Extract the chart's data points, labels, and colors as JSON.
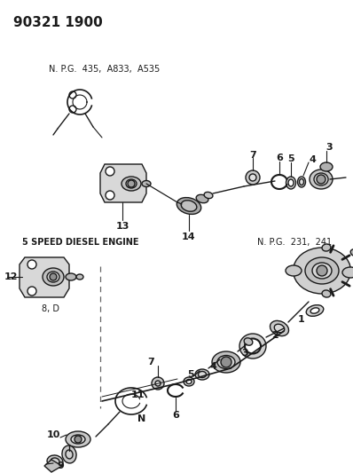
{
  "title": "90321 1900",
  "bg_color": "#ffffff",
  "lc": "#1a1a1a",
  "tc": "#1a1a1a",
  "label_npg1": "N. P.G.  435,  A833,  A535",
  "label_npg2": "N. P.G.  231,  241",
  "label_diesel": "5 SPEED DIESEL ENGINE",
  "label_8d": "8, D",
  "gray_fill": "#c8c8c8",
  "dark_fill": "#888888",
  "light_fill": "#e8e8e8",
  "white_fill": "#ffffff"
}
